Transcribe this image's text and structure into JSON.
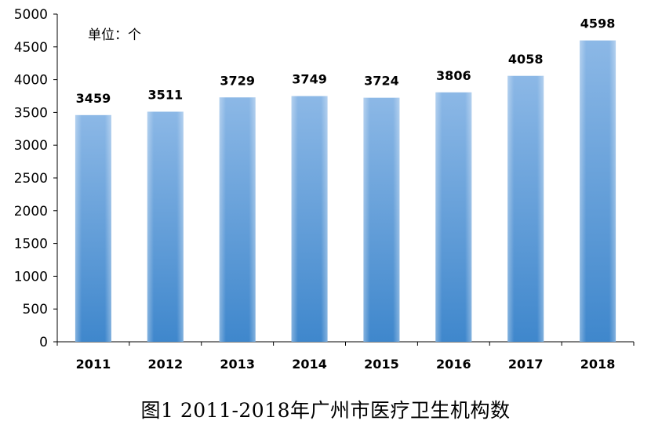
{
  "chart_data": {
    "type": "bar",
    "title": "图1  2011-2018年广州市医疗卫生机构数",
    "unit_label": "单位：个",
    "categories": [
      "2011",
      "2012",
      "2013",
      "2014",
      "2015",
      "2016",
      "2017",
      "2018"
    ],
    "values": [
      3459,
      3511,
      3729,
      3749,
      3724,
      3806,
      4058,
      4598
    ],
    "value_labels": [
      "3459",
      "3511",
      "3729",
      "3749",
      "3724",
      "3806",
      "4058",
      "4598"
    ],
    "ylim": [
      0,
      5000
    ],
    "yticks": [
      "0",
      "500",
      "1000",
      "1500",
      "2000",
      "2500",
      "3000",
      "3500",
      "4000",
      "4500",
      "5000"
    ],
    "grid": false,
    "bar_color_top": "#8cb8e6",
    "bar_color_bottom": "#3f87cc"
  }
}
